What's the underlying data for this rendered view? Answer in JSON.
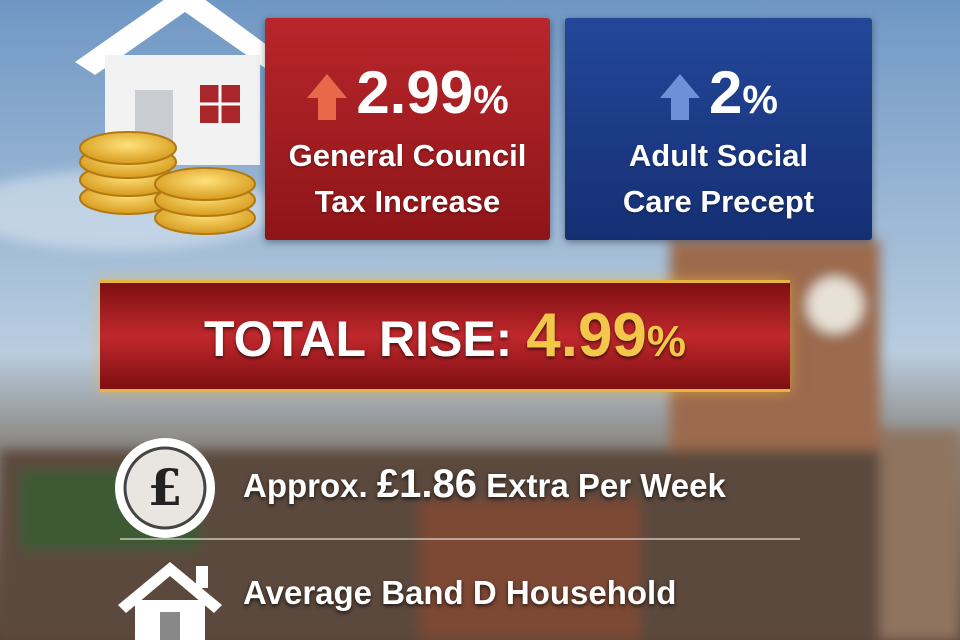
{
  "cards": [
    {
      "value": "2.99",
      "unit": "%",
      "lines": [
        "General Council",
        "Tax Increase"
      ]
    },
    {
      "value": "2",
      "unit": "%",
      "lines": [
        "Adult Social",
        "Care Precept"
      ]
    }
  ],
  "total": {
    "label": "TOTAL RISE:",
    "value": "4.99",
    "unit": "%"
  },
  "facts": [
    {
      "prefix": "Approx.",
      "amount": "£1.86",
      "suffix": "Extra Per Week"
    },
    {
      "text": "Average Band D Household"
    }
  ]
}
